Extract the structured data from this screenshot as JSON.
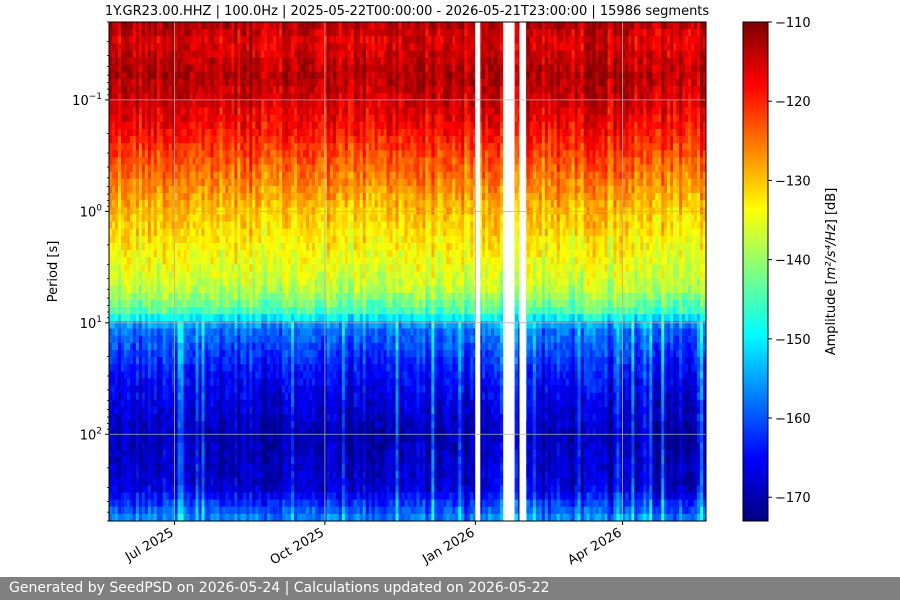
{
  "chart_data": {
    "type": "heatmap",
    "title": "1Y.GR23.00.HHZ | 100.0Hz | 2025-05-22T00:00:00 - 2026-05-21T23:00:00 | 15986 segments",
    "xlabel": "",
    "ylabel": "Period [s]",
    "x_range": [
      "2025-05-22",
      "2026-05-22"
    ],
    "x_ticks": [
      {
        "date": "2025-07-01",
        "label": "Jul 2025"
      },
      {
        "date": "2025-10-01",
        "label": "Oct 2025"
      },
      {
        "date": "2026-01-01",
        "label": "Jan 2026"
      },
      {
        "date": "2026-04-01",
        "label": "Apr 2026"
      }
    ],
    "y_scale": "log",
    "y_inverted": true,
    "y_range": [
      0.02,
      600
    ],
    "y_ticks": [
      {
        "value": 0.1,
        "base": "10",
        "exp": "−1"
      },
      {
        "value": 1,
        "base": "10",
        "exp": "0"
      },
      {
        "value": 10,
        "base": "10",
        "exp": "1"
      },
      {
        "value": 100,
        "base": "10",
        "exp": "2"
      }
    ],
    "grid": true,
    "colormap": "jet",
    "colorbar": {
      "label_prefix": "Amplitude [",
      "label_math": "m²/s⁴/Hz",
      "label_suffix": "] [dB]",
      "range": [
        -173,
        -110
      ],
      "ticks": [
        -110,
        -120,
        -130,
        -140,
        -150,
        -160,
        -170
      ]
    },
    "amplitude_profile_db": [
      {
        "period": 0.02,
        "amplitude": -113
      },
      {
        "period": 0.03,
        "amplitude": -116
      },
      {
        "period": 0.06,
        "amplitude": -113
      },
      {
        "period": 0.15,
        "amplitude": -117
      },
      {
        "period": 0.4,
        "amplitude": -124
      },
      {
        "period": 1.0,
        "amplitude": -130
      },
      {
        "period": 2.5,
        "amplitude": -134
      },
      {
        "period": 5.0,
        "amplitude": -138
      },
      {
        "period": 8.0,
        "amplitude": -145
      },
      {
        "period": 11.0,
        "amplitude": -158
      },
      {
        "period": 30.0,
        "amplitude": -165
      },
      {
        "period": 100.0,
        "amplitude": -170
      },
      {
        "period": 300.0,
        "amplitude": -168
      },
      {
        "period": 600.0,
        "amplitude": -156
      }
    ],
    "data_gaps": [
      [
        "2026-01-01",
        "2026-01-04"
      ],
      [
        "2026-01-18",
        "2026-01-25"
      ],
      [
        "2026-01-28",
        "2026-02-01"
      ]
    ],
    "colors": {
      "jet_stops": [
        "#00007f",
        "#0000ff",
        "#007fff",
        "#00ffff",
        "#7fff7f",
        "#ffff00",
        "#ff7f00",
        "#ff0000",
        "#7f0000"
      ],
      "grid": "#b0b0b0",
      "gap": "#ffffff"
    }
  },
  "footer": {
    "text": "Generated by SeedPSD on 2026-05-24 | Calculations updated on 2026-05-22",
    "background": "#808080"
  }
}
